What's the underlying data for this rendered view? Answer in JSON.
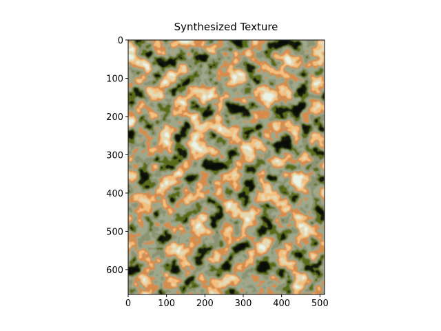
{
  "chart_data": {
    "type": "image",
    "title": "Synthesized Texture",
    "xlim": [
      0,
      512
    ],
    "ylim": [
      665,
      0
    ],
    "xticks": [
      0,
      100,
      200,
      300,
      400,
      500
    ],
    "yticks": [
      0,
      100,
      200,
      300,
      400,
      500,
      600
    ]
  }
}
